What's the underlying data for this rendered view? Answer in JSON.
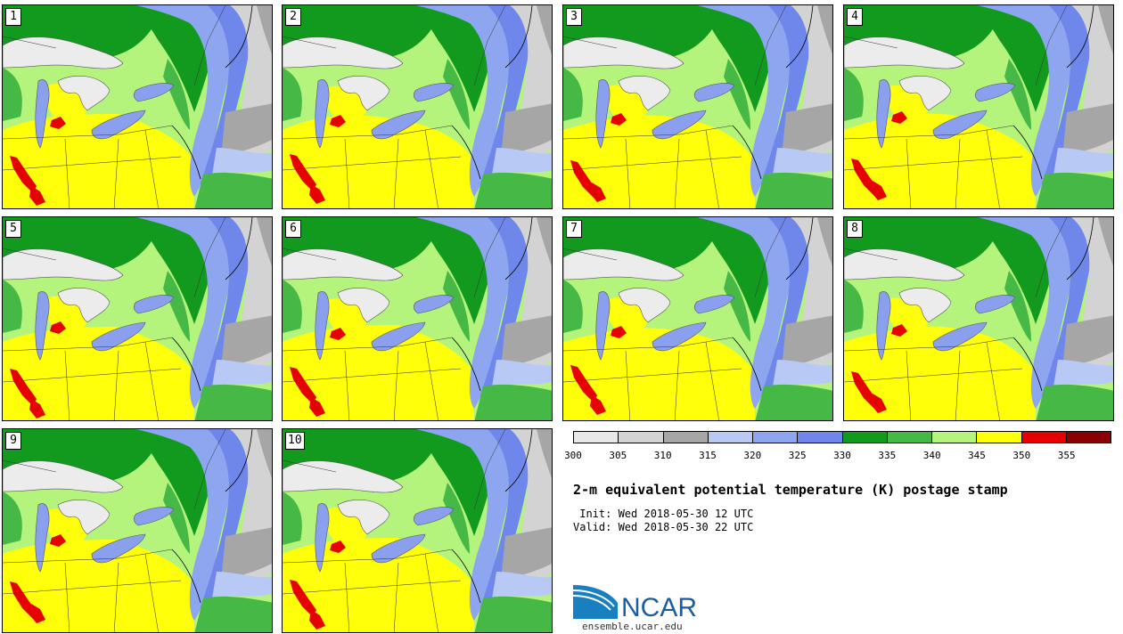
{
  "panels": [
    {
      "label": "1"
    },
    {
      "label": "2"
    },
    {
      "label": "3"
    },
    {
      "label": "4"
    },
    {
      "label": "5"
    },
    {
      "label": "6"
    },
    {
      "label": "7"
    },
    {
      "label": "8"
    },
    {
      "label": "9"
    },
    {
      "label": "10"
    }
  ],
  "colorbar": {
    "colors": [
      "#e8e8e8",
      "#d3d3d3",
      "#a6a6a6",
      "#b9c9f5",
      "#8ea6ef",
      "#6f86ea",
      "#129a1e",
      "#45b845",
      "#b5f47c",
      "#ffff0a",
      "#e60000",
      "#8b0000"
    ],
    "tick_labels": [
      "300",
      "305",
      "310",
      "315",
      "320",
      "325",
      "330",
      "335",
      "340",
      "345",
      "350",
      "355"
    ]
  },
  "title": "2-m equivalent potential temperature (K) postage stamp",
  "init_text": " Init: Wed 2018-05-30 12 UTC",
  "valid_text": "Valid: Wed 2018-05-30 22 UTC",
  "logo": {
    "text": "NCAR",
    "url": "ensemble.ucar.edu"
  },
  "colors": {
    "lake": "#ececec",
    "lake_cool": "#8aa0ee",
    "dark_green": "#129a1e",
    "mid_green": "#45b845",
    "light_green": "#b5f47c",
    "yellow": "#ffff0a",
    "red": "#e60000",
    "grey": "#a6a6a6",
    "light_grey": "#d3d3d3",
    "blue1": "#b9c9f5",
    "blue2": "#8ea6ef",
    "blue3": "#6f86ea"
  }
}
